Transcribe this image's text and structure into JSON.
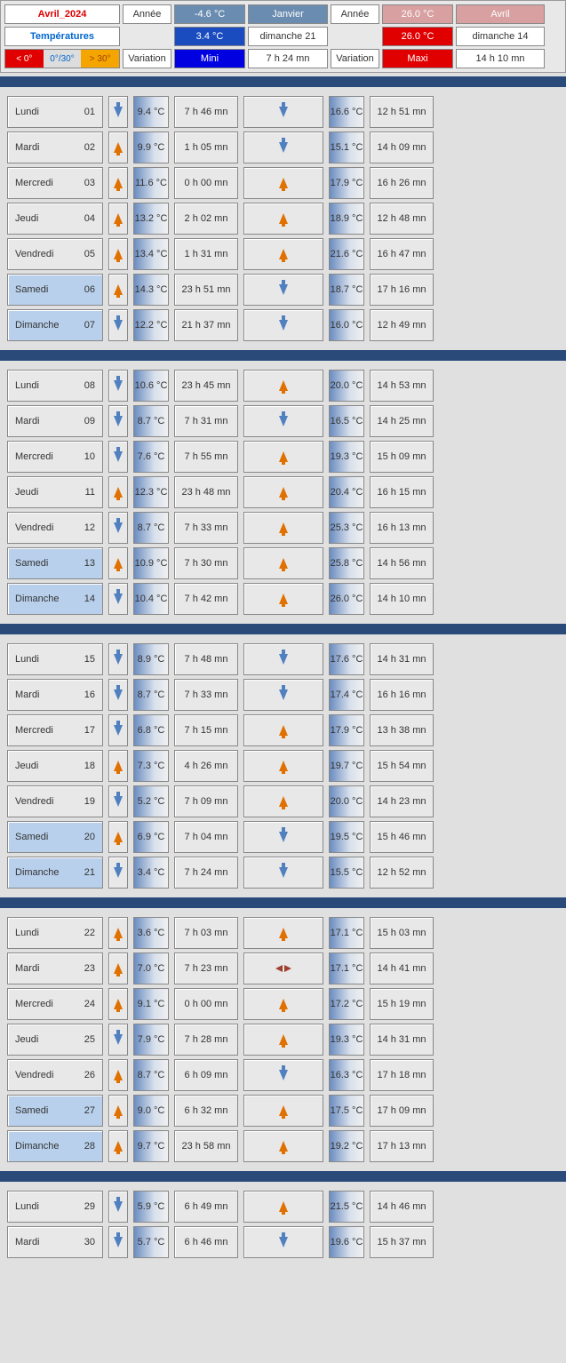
{
  "header": {
    "title": "Avril_2024",
    "temperatures_label": "Températures",
    "legend": {
      "cold": "< 0°",
      "mid": "0°/30°",
      "hot": "> 30°"
    },
    "col_year_left": "Année",
    "col_year_right": "Année",
    "col_variation_left": "Variation",
    "col_variation_right": "Variation",
    "min_year_temp": "-4.6 °C",
    "min_year_month": "Janvier",
    "max_year_temp": "26.0 °C",
    "max_year_month": "Avril",
    "min_month_temp": "3.4 °C",
    "min_month_day": "dimanche 21",
    "max_month_temp": "26.0 °C",
    "max_month_day": "dimanche 14",
    "mini_label": "Mini",
    "maxi_label": "Maxi",
    "mini_time": "7 h 24 mn",
    "maxi_time": "14 h 10 mn"
  },
  "weeks": [
    [
      {
        "day": "Lundi",
        "num": "01",
        "we": false,
        "a1": "down",
        "t1": "9.4 °C",
        "h1": "7 h 46 mn",
        "a2": "down",
        "t2": "16.6 °C",
        "h2": "12 h 51 mn"
      },
      {
        "day": "Mardi",
        "num": "02",
        "we": false,
        "a1": "up",
        "t1": "9.9 °C",
        "h1": "1 h 05 mn",
        "a2": "down",
        "t2": "15.1 °C",
        "h2": "14 h 09 mn"
      },
      {
        "day": "Mercredi",
        "num": "03",
        "we": false,
        "a1": "up",
        "t1": "11.6 °C",
        "h1": "0 h 00 mn",
        "a2": "up",
        "t2": "17.9 °C",
        "h2": "16 h 26 mn"
      },
      {
        "day": "Jeudi",
        "num": "04",
        "we": false,
        "a1": "up",
        "t1": "13.2 °C",
        "h1": "2 h 02 mn",
        "a2": "up",
        "t2": "18.9 °C",
        "h2": "12 h 48 mn"
      },
      {
        "day": "Vendredi",
        "num": "05",
        "we": false,
        "a1": "up",
        "t1": "13.4 °C",
        "h1": "1 h 31 mn",
        "a2": "up",
        "t2": "21.6 °C",
        "h2": "16 h 47 mn"
      },
      {
        "day": "Samedi",
        "num": "06",
        "we": true,
        "a1": "up",
        "t1": "14.3 °C",
        "h1": "23 h 51 mn",
        "a2": "down",
        "t2": "18.7 °C",
        "h2": "17 h 16 mn"
      },
      {
        "day": "Dimanche",
        "num": "07",
        "we": true,
        "a1": "down",
        "t1": "12.2 °C",
        "h1": "21 h 37 mn",
        "a2": "down",
        "t2": "16.0 °C",
        "h2": "12 h 49 mn"
      }
    ],
    [
      {
        "day": "Lundi",
        "num": "08",
        "we": false,
        "a1": "down",
        "t1": "10.6 °C",
        "h1": "23 h 45 mn",
        "a2": "up",
        "t2": "20.0 °C",
        "h2": "14 h 53 mn"
      },
      {
        "day": "Mardi",
        "num": "09",
        "we": false,
        "a1": "down",
        "t1": "8.7 °C",
        "h1": "7 h 31 mn",
        "a2": "down",
        "t2": "16.5 °C",
        "h2": "14 h 25 mn"
      },
      {
        "day": "Mercredi",
        "num": "10",
        "we": false,
        "a1": "down",
        "t1": "7.6 °C",
        "h1": "7 h 55 mn",
        "a2": "up",
        "t2": "19.3 °C",
        "h2": "15 h 09 mn"
      },
      {
        "day": "Jeudi",
        "num": "11",
        "we": false,
        "a1": "up",
        "t1": "12.3 °C",
        "h1": "23 h 48 mn",
        "a2": "up",
        "t2": "20.4 °C",
        "h2": "16 h 15 mn"
      },
      {
        "day": "Vendredi",
        "num": "12",
        "we": false,
        "a1": "down",
        "t1": "8.7 °C",
        "h1": "7 h 33 mn",
        "a2": "up",
        "t2": "25.3 °C",
        "h2": "16 h 13 mn"
      },
      {
        "day": "Samedi",
        "num": "13",
        "we": true,
        "a1": "up",
        "t1": "10.9 °C",
        "h1": "7 h 30 mn",
        "a2": "up",
        "t2": "25.8 °C",
        "h2": "14 h 56 mn"
      },
      {
        "day": "Dimanche",
        "num": "14",
        "we": true,
        "a1": "down",
        "t1": "10.4 °C",
        "h1": "7 h 42 mn",
        "a2": "up",
        "t2": "26.0 °C",
        "h2": "14 h 10 mn"
      }
    ],
    [
      {
        "day": "Lundi",
        "num": "15",
        "we": false,
        "a1": "down",
        "t1": "8.9 °C",
        "h1": "7 h 48 mn",
        "a2": "down",
        "t2": "17.6 °C",
        "h2": "14 h 31 mn"
      },
      {
        "day": "Mardi",
        "num": "16",
        "we": false,
        "a1": "down",
        "t1": "8.7 °C",
        "h1": "7 h 33 mn",
        "a2": "down",
        "t2": "17.4 °C",
        "h2": "16 h 16 mn"
      },
      {
        "day": "Mercredi",
        "num": "17",
        "we": false,
        "a1": "down",
        "t1": "6.8 °C",
        "h1": "7 h 15 mn",
        "a2": "up",
        "t2": "17.9 °C",
        "h2": "13 h 38 mn"
      },
      {
        "day": "Jeudi",
        "num": "18",
        "we": false,
        "a1": "up",
        "t1": "7.3 °C",
        "h1": "4 h 26 mn",
        "a2": "up",
        "t2": "19.7 °C",
        "h2": "15 h 54 mn"
      },
      {
        "day": "Vendredi",
        "num": "19",
        "we": false,
        "a1": "down",
        "t1": "5.2 °C",
        "h1": "7 h 09 mn",
        "a2": "up",
        "t2": "20.0 °C",
        "h2": "14 h 23 mn"
      },
      {
        "day": "Samedi",
        "num": "20",
        "we": true,
        "a1": "up",
        "t1": "6.9 °C",
        "h1": "7 h 04 mn",
        "a2": "down",
        "t2": "19.5 °C",
        "h2": "15 h 46 mn"
      },
      {
        "day": "Dimanche",
        "num": "21",
        "we": true,
        "a1": "down",
        "t1": "3.4 °C",
        "h1": "7 h 24 mn",
        "a2": "down",
        "t2": "15.5 °C",
        "h2": "12 h 52 mn"
      }
    ],
    [
      {
        "day": "Lundi",
        "num": "22",
        "we": false,
        "a1": "up",
        "t1": "3.6 °C",
        "h1": "7 h 03 mn",
        "a2": "up",
        "t2": "17.1 °C",
        "h2": "15 h 03 mn"
      },
      {
        "day": "Mardi",
        "num": "23",
        "we": false,
        "a1": "up",
        "t1": "7.0 °C",
        "h1": "7 h 23 mn",
        "a2": "same",
        "t2": "17.1 °C",
        "h2": "14 h 41 mn"
      },
      {
        "day": "Mercredi",
        "num": "24",
        "we": false,
        "a1": "up",
        "t1": "9.1 °C",
        "h1": "0 h 00 mn",
        "a2": "up",
        "t2": "17.2 °C",
        "h2": "15 h 19 mn"
      },
      {
        "day": "Jeudi",
        "num": "25",
        "we": false,
        "a1": "down",
        "t1": "7.9 °C",
        "h1": "7 h 28 mn",
        "a2": "up",
        "t2": "19.3 °C",
        "h2": "14 h 31 mn"
      },
      {
        "day": "Vendredi",
        "num": "26",
        "we": false,
        "a1": "up",
        "t1": "8.7 °C",
        "h1": "6 h 09 mn",
        "a2": "down",
        "t2": "16.3 °C",
        "h2": "17 h 18 mn"
      },
      {
        "day": "Samedi",
        "num": "27",
        "we": true,
        "a1": "up",
        "t1": "9.0 °C",
        "h1": "6 h 32 mn",
        "a2": "up",
        "t2": "17.5 °C",
        "h2": "17 h 09 mn"
      },
      {
        "day": "Dimanche",
        "num": "28",
        "we": true,
        "a1": "up",
        "t1": "9.7 °C",
        "h1": "23 h 58 mn",
        "a2": "up",
        "t2": "19.2 °C",
        "h2": "17 h 13 mn"
      }
    ],
    [
      {
        "day": "Lundi",
        "num": "29",
        "we": false,
        "a1": "down",
        "t1": "5.9 °C",
        "h1": "6 h 49 mn",
        "a2": "up",
        "t2": "21.5 °C",
        "h2": "14 h 46 mn"
      },
      {
        "day": "Mardi",
        "num": "30",
        "we": false,
        "a1": "down",
        "t1": "5.7 °C",
        "h1": "6 h 46 mn",
        "a2": "down",
        "t2": "19.6 °C",
        "h2": "15 h 37 mn"
      }
    ]
  ]
}
